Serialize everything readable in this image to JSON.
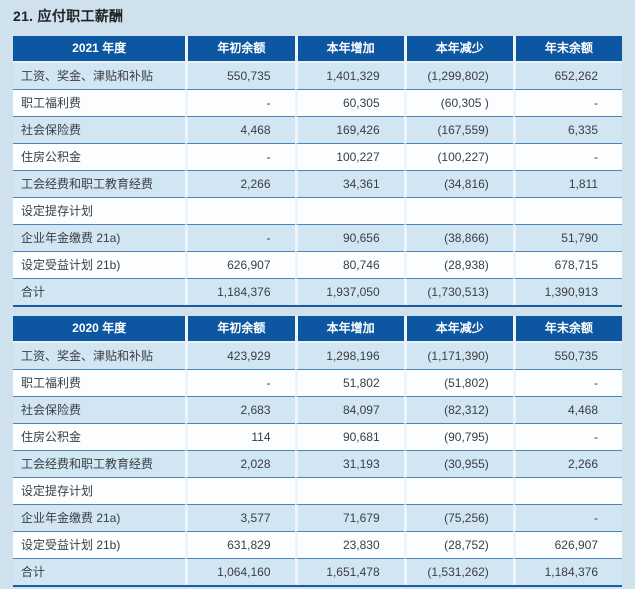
{
  "page": {
    "title": "21. 应付职工薪酬"
  },
  "colors": {
    "page_background": "#cfe1ec",
    "header_background": "#0d57a2",
    "header_text": "#ffffff",
    "row_light_blue": "#d2e5f2",
    "row_white": "#fbfdfe",
    "row_separator": "#4d84b5",
    "table_bottom_border": "#1a5ba4",
    "column_gap": "#eef5fa",
    "body_text": "#3a3e42"
  },
  "tables": [
    {
      "period": "2021 年度",
      "columns": [
        "年初余额",
        "本年增加",
        "本年减少",
        "年末余额"
      ],
      "rows": [
        {
          "label": "工资、奖金、津贴和补贴",
          "values": [
            "550,735",
            "1,401,329",
            "(1,299,802)",
            "652,262"
          ]
        },
        {
          "label": "职工福利费",
          "values": [
            "-",
            "60,305",
            "(60,305 )",
            "-"
          ]
        },
        {
          "label": "社会保险费",
          "values": [
            "4,468",
            "169,426",
            "(167,559)",
            "6,335"
          ]
        },
        {
          "label": "住房公积金",
          "values": [
            "-",
            "100,227",
            "(100,227)",
            "-"
          ]
        },
        {
          "label": "工会经费和职工教育经费",
          "values": [
            "2,266",
            "34,361",
            "(34,816)",
            "1,811"
          ]
        },
        {
          "label": "设定提存计划",
          "values": [
            "",
            "",
            "",
            ""
          ],
          "section": true
        },
        {
          "label": "企业年金缴费 21a)",
          "values": [
            "-",
            "90,656",
            "(38,866)",
            "51,790"
          ]
        },
        {
          "label": "设定受益计划 21b)",
          "values": [
            "626,907",
            "80,746",
            "(28,938)",
            "678,715"
          ]
        },
        {
          "label": "合计",
          "values": [
            "1,184,376",
            "1,937,050",
            "(1,730,513)",
            "1,390,913"
          ],
          "total": true
        }
      ]
    },
    {
      "period": "2020 年度",
      "columns": [
        "年初余额",
        "本年增加",
        "本年减少",
        "年末余额"
      ],
      "rows": [
        {
          "label": "工资、奖金、津贴和补贴",
          "values": [
            "423,929",
            "1,298,196",
            "(1,171,390)",
            "550,735"
          ]
        },
        {
          "label": "职工福利费",
          "values": [
            "-",
            "51,802",
            "(51,802)",
            "-"
          ]
        },
        {
          "label": "社会保险费",
          "values": [
            "2,683",
            "84,097",
            "(82,312)",
            "4,468"
          ]
        },
        {
          "label": "住房公积金",
          "values": [
            "114",
            "90,681",
            "(90,795)",
            "-"
          ]
        },
        {
          "label": "工会经费和职工教育经费",
          "values": [
            "2,028",
            "31,193",
            "(30,955)",
            "2,266"
          ]
        },
        {
          "label": "设定提存计划",
          "values": [
            "",
            "",
            "",
            ""
          ],
          "section": true
        },
        {
          "label": "企业年金缴费 21a)",
          "values": [
            "3,577",
            "71,679",
            "(75,256)",
            "-"
          ]
        },
        {
          "label": "设定受益计划 21b)",
          "values": [
            "631,829",
            "23,830",
            "(28,752)",
            "626,907"
          ]
        },
        {
          "label": "合计",
          "values": [
            "1,064,160",
            "1,651,478",
            "(1,531,262)",
            "1,184,376"
          ],
          "total": true
        }
      ]
    }
  ]
}
